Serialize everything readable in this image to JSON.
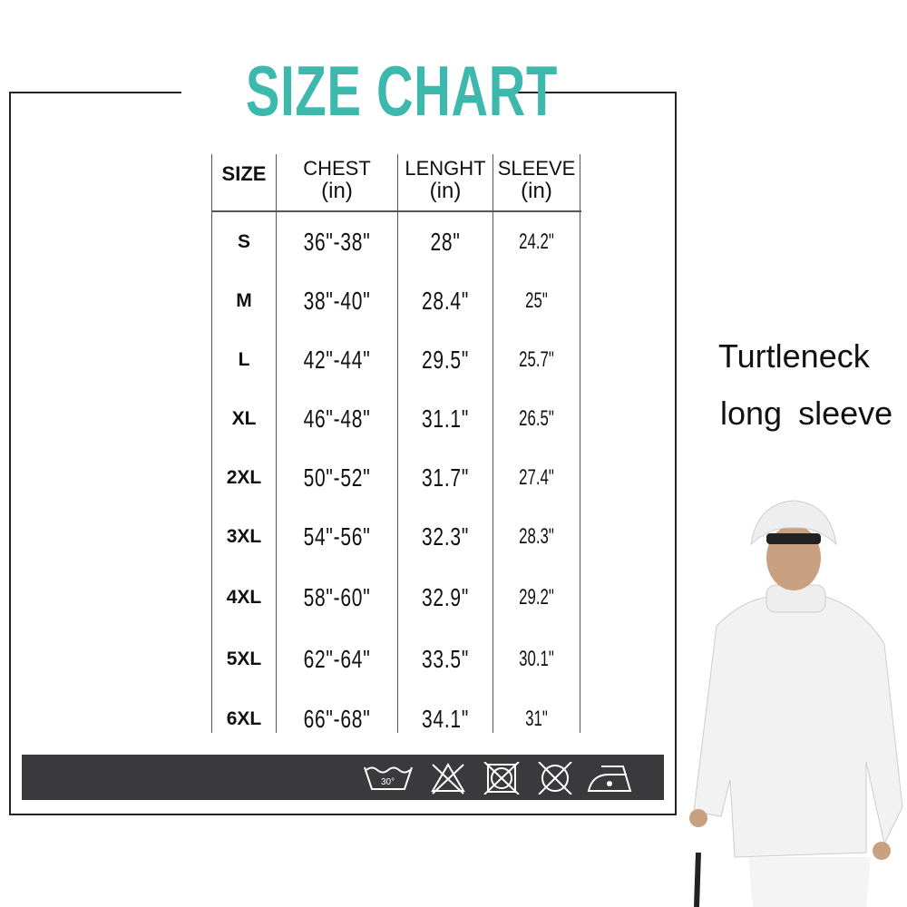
{
  "title": "SIZE CHART",
  "headers": [
    {
      "label": "SIZE",
      "unit": ""
    },
    {
      "label": "CHEST",
      "unit": "(in)"
    },
    {
      "label": "LENGHT",
      "unit": "(in)"
    },
    {
      "label": "SLEEVE",
      "unit": "(in)"
    }
  ],
  "rows": [
    {
      "size": "S",
      "chest": "36\"-38\"",
      "length": "28\"",
      "sleeve": "24.2\""
    },
    {
      "size": "M",
      "chest": "38\"-40\"",
      "length": "28.4\"",
      "sleeve": "25\""
    },
    {
      "size": "L",
      "chest": "42\"-44\"",
      "length": "29.5\"",
      "sleeve": "25.7\""
    },
    {
      "size": "XL",
      "chest": "46\"-48\"",
      "length": "31.1\"",
      "sleeve": "26.5\""
    },
    {
      "size": "2XL",
      "chest": "50\"-52\"",
      "length": "31.7\"",
      "sleeve": "27.4\""
    },
    {
      "size": "3XL",
      "chest": "54\"-56\"",
      "length": "32.3\"",
      "sleeve": "28.3\""
    },
    {
      "size": "4XL",
      "chest": "58\"-60\"",
      "length": "32.9\"",
      "sleeve": "29.2\""
    },
    {
      "size": "5XL",
      "chest": "62\"-64\"",
      "length": "33.5\"",
      "sleeve": "30.1\""
    },
    {
      "size": "6XL",
      "chest": "66\"-68\"",
      "length": "34.1\"",
      "sleeve": "31\""
    }
  ],
  "care": {
    "wash_temp": "30°",
    "icons": [
      "wash-30-icon",
      "no-bleach-icon",
      "no-tumble-dry-icon",
      "no-dry-clean-icon",
      "iron-low-icon"
    ]
  },
  "product": {
    "line1": "Turtleneck",
    "line2": "long sleeve"
  },
  "colors": {
    "title": "#3cb8ad",
    "bar": "#3a3a3c"
  }
}
